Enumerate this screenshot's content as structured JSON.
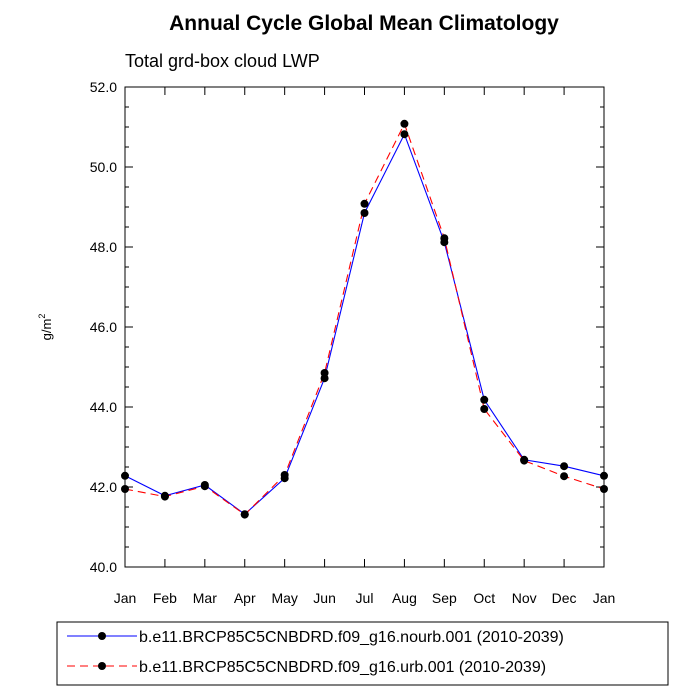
{
  "chart_data": {
    "type": "line",
    "title": "Annual Cycle Global Mean Climatology",
    "subtitle": "Total grd-box cloud LWP",
    "ylabel": "g/m",
    "ylabel_superscript": "2",
    "categories": [
      "Jan",
      "Feb",
      "Mar",
      "Apr",
      "May",
      "Jun",
      "Jul",
      "Aug",
      "Sep",
      "Oct",
      "Nov",
      "Dec",
      "Jan"
    ],
    "ylim": [
      40.0,
      52.0
    ],
    "yticks": [
      "40.0",
      "42.0",
      "44.0",
      "46.0",
      "48.0",
      "50.0",
      "52.0"
    ],
    "grid": false,
    "legend_position": "bottom",
    "series": [
      {
        "name": "b.e11.BRCP85C5CNBDRD.f09_g16.nourb.001 (2010-2039)",
        "color": "#0000ff",
        "dash": "solid",
        "values": [
          42.28,
          41.78,
          42.05,
          41.32,
          42.22,
          44.72,
          48.85,
          50.82,
          48.12,
          44.18,
          42.68,
          42.52,
          42.28
        ]
      },
      {
        "name": "b.e11.BRCP85C5CNBDRD.f09_g16.urb.001 (2010-2039)",
        "color": "#ff0000",
        "dash": "dashed",
        "values": [
          41.95,
          41.76,
          42.02,
          41.31,
          42.3,
          44.85,
          49.08,
          51.08,
          48.22,
          43.95,
          42.66,
          42.27,
          41.95
        ]
      }
    ]
  }
}
